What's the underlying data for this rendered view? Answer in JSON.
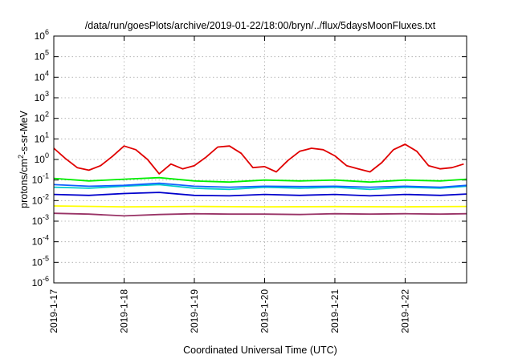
{
  "chart_data": {
    "type": "line",
    "title": "/data/run/goesPlots/archive/2019-01-22/18:00/bryn/../flux/5daysMoonFluxes.txt",
    "xlabel": "Coordinated Universal Time (UTC)",
    "ylabel": "protons/cm²-s-sr-MeV",
    "ylabel_parts": {
      "before": "protons/cm",
      "sup": "2",
      "after": "-s-sr-MeV"
    },
    "y_scale": "log",
    "ylim": [
      1e-06,
      1000000.0
    ],
    "y_ticks": [
      {
        "base": "10",
        "exp": "-6",
        "value": 1e-06
      },
      {
        "base": "10",
        "exp": "-5",
        "value": 1e-05
      },
      {
        "base": "10",
        "exp": "-4",
        "value": 0.0001
      },
      {
        "base": "10",
        "exp": "-3",
        "value": 0.001
      },
      {
        "base": "10",
        "exp": "-2",
        "value": 0.01
      },
      {
        "base": "10",
        "exp": "-1",
        "value": 0.1
      },
      {
        "base": "10",
        "exp": "0",
        "value": 1
      },
      {
        "base": "10",
        "exp": "1",
        "value": 10
      },
      {
        "base": "10",
        "exp": "2",
        "value": 100
      },
      {
        "base": "10",
        "exp": "3",
        "value": 1000
      },
      {
        "base": "10",
        "exp": "4",
        "value": 10000
      },
      {
        "base": "10",
        "exp": "5",
        "value": 100000
      },
      {
        "base": "10",
        "exp": "6",
        "value": 1000000
      }
    ],
    "x_range_days": [
      "2019-01-17T00:00",
      "2019-01-22T21:00"
    ],
    "x_ticks": [
      "2019-1-17",
      "2019-1-18",
      "2019-1-19",
      "2019-1-20",
      "2019-1-21",
      "2019-1-22"
    ],
    "grid": true,
    "series": [
      {
        "color": "#e00000",
        "x": [
          "2019-01-17T00:00",
          "2019-01-17T04:00",
          "2019-01-17T08:00",
          "2019-01-17T12:00",
          "2019-01-17T16:00",
          "2019-01-17T20:00",
          "2019-01-18T00:00",
          "2019-01-18T04:00",
          "2019-01-18T08:00",
          "2019-01-18T12:00",
          "2019-01-18T16:00",
          "2019-01-18T20:00",
          "2019-01-19T00:00",
          "2019-01-19T04:00",
          "2019-01-19T08:00",
          "2019-01-19T12:00",
          "2019-01-19T16:00",
          "2019-01-19T20:00",
          "2019-01-20T00:00",
          "2019-01-20T04:00",
          "2019-01-20T08:00",
          "2019-01-20T12:00",
          "2019-01-20T16:00",
          "2019-01-20T20:00",
          "2019-01-21T00:00",
          "2019-01-21T04:00",
          "2019-01-21T08:00",
          "2019-01-21T12:00",
          "2019-01-21T16:00",
          "2019-01-21T20:00",
          "2019-01-22T00:00",
          "2019-01-22T04:00",
          "2019-01-22T08:00",
          "2019-01-22T12:00",
          "2019-01-22T16:00",
          "2019-01-22T20:00"
        ],
        "values": [
          3.5,
          1.1,
          0.4,
          0.3,
          0.5,
          1.4,
          4.5,
          3.0,
          1.0,
          0.2,
          0.6,
          0.35,
          0.5,
          1.3,
          4.0,
          4.5,
          2.0,
          0.4,
          0.45,
          0.25,
          0.9,
          2.5,
          3.5,
          3.0,
          1.5,
          0.5,
          0.35,
          0.25,
          0.7,
          3.0,
          5.5,
          2.5,
          0.5,
          0.35,
          0.4,
          0.6
        ]
      },
      {
        "color": "#00ee00",
        "x": [
          "2019-01-17T00:00",
          "2019-01-17T12:00",
          "2019-01-18T00:00",
          "2019-01-18T12:00",
          "2019-01-19T00:00",
          "2019-01-19T12:00",
          "2019-01-20T00:00",
          "2019-01-20T12:00",
          "2019-01-21T00:00",
          "2019-01-21T12:00",
          "2019-01-22T00:00",
          "2019-01-22T12:00",
          "2019-01-22T21:00"
        ],
        "values": [
          0.12,
          0.09,
          0.11,
          0.13,
          0.09,
          0.08,
          0.1,
          0.09,
          0.1,
          0.08,
          0.1,
          0.09,
          0.11
        ]
      },
      {
        "color": "#00cccc",
        "x": [
          "2019-01-17T00:00",
          "2019-01-17T12:00",
          "2019-01-18T00:00",
          "2019-01-18T12:00",
          "2019-01-19T00:00",
          "2019-01-19T12:00",
          "2019-01-20T00:00",
          "2019-01-20T12:00",
          "2019-01-21T00:00",
          "2019-01-21T12:00",
          "2019-01-22T00:00",
          "2019-01-22T12:00",
          "2019-01-22T21:00"
        ],
        "values": [
          0.045,
          0.04,
          0.05,
          0.06,
          0.04,
          0.035,
          0.045,
          0.04,
          0.045,
          0.035,
          0.045,
          0.04,
          0.05
        ]
      },
      {
        "color": "#1060ff",
        "x": [
          "2019-01-17T00:00",
          "2019-01-17T12:00",
          "2019-01-18T00:00",
          "2019-01-18T12:00",
          "2019-01-19T00:00",
          "2019-01-19T12:00",
          "2019-01-20T00:00",
          "2019-01-20T12:00",
          "2019-01-21T00:00",
          "2019-01-21T12:00",
          "2019-01-22T00:00",
          "2019-01-22T12:00",
          "2019-01-22T21:00"
        ],
        "values": [
          0.06,
          0.05,
          0.055,
          0.07,
          0.05,
          0.045,
          0.05,
          0.048,
          0.05,
          0.045,
          0.05,
          0.045,
          0.055
        ]
      },
      {
        "color": "#0000cc",
        "x": [
          "2019-01-17T00:00",
          "2019-01-17T12:00",
          "2019-01-18T00:00",
          "2019-01-18T12:00",
          "2019-01-19T00:00",
          "2019-01-19T12:00",
          "2019-01-20T00:00",
          "2019-01-20T12:00",
          "2019-01-21T00:00",
          "2019-01-21T12:00",
          "2019-01-22T00:00",
          "2019-01-22T12:00",
          "2019-01-22T21:00"
        ],
        "values": [
          0.02,
          0.018,
          0.022,
          0.025,
          0.018,
          0.017,
          0.02,
          0.018,
          0.02,
          0.017,
          0.02,
          0.018,
          0.021
        ]
      },
      {
        "color": "#ffff00",
        "x": [
          "2019-01-17T00:00",
          "2019-01-18T00:00",
          "2019-01-19T00:00",
          "2019-01-20T00:00",
          "2019-01-21T00:00",
          "2019-01-22T00:00",
          "2019-01-22T21:00"
        ],
        "values": [
          0.0055,
          0.005,
          0.0052,
          0.005,
          0.0051,
          0.005,
          0.0052
        ]
      },
      {
        "color": "#993366",
        "x": [
          "2019-01-17T00:00",
          "2019-01-17T12:00",
          "2019-01-18T00:00",
          "2019-01-18T12:00",
          "2019-01-19T00:00",
          "2019-01-19T12:00",
          "2019-01-20T00:00",
          "2019-01-20T12:00",
          "2019-01-21T00:00",
          "2019-01-21T12:00",
          "2019-01-22T00:00",
          "2019-01-22T12:00",
          "2019-01-22T21:00"
        ],
        "values": [
          0.0024,
          0.0022,
          0.0018,
          0.0021,
          0.0023,
          0.0022,
          0.0022,
          0.0021,
          0.0023,
          0.0022,
          0.0023,
          0.0022,
          0.0023
        ]
      }
    ]
  }
}
